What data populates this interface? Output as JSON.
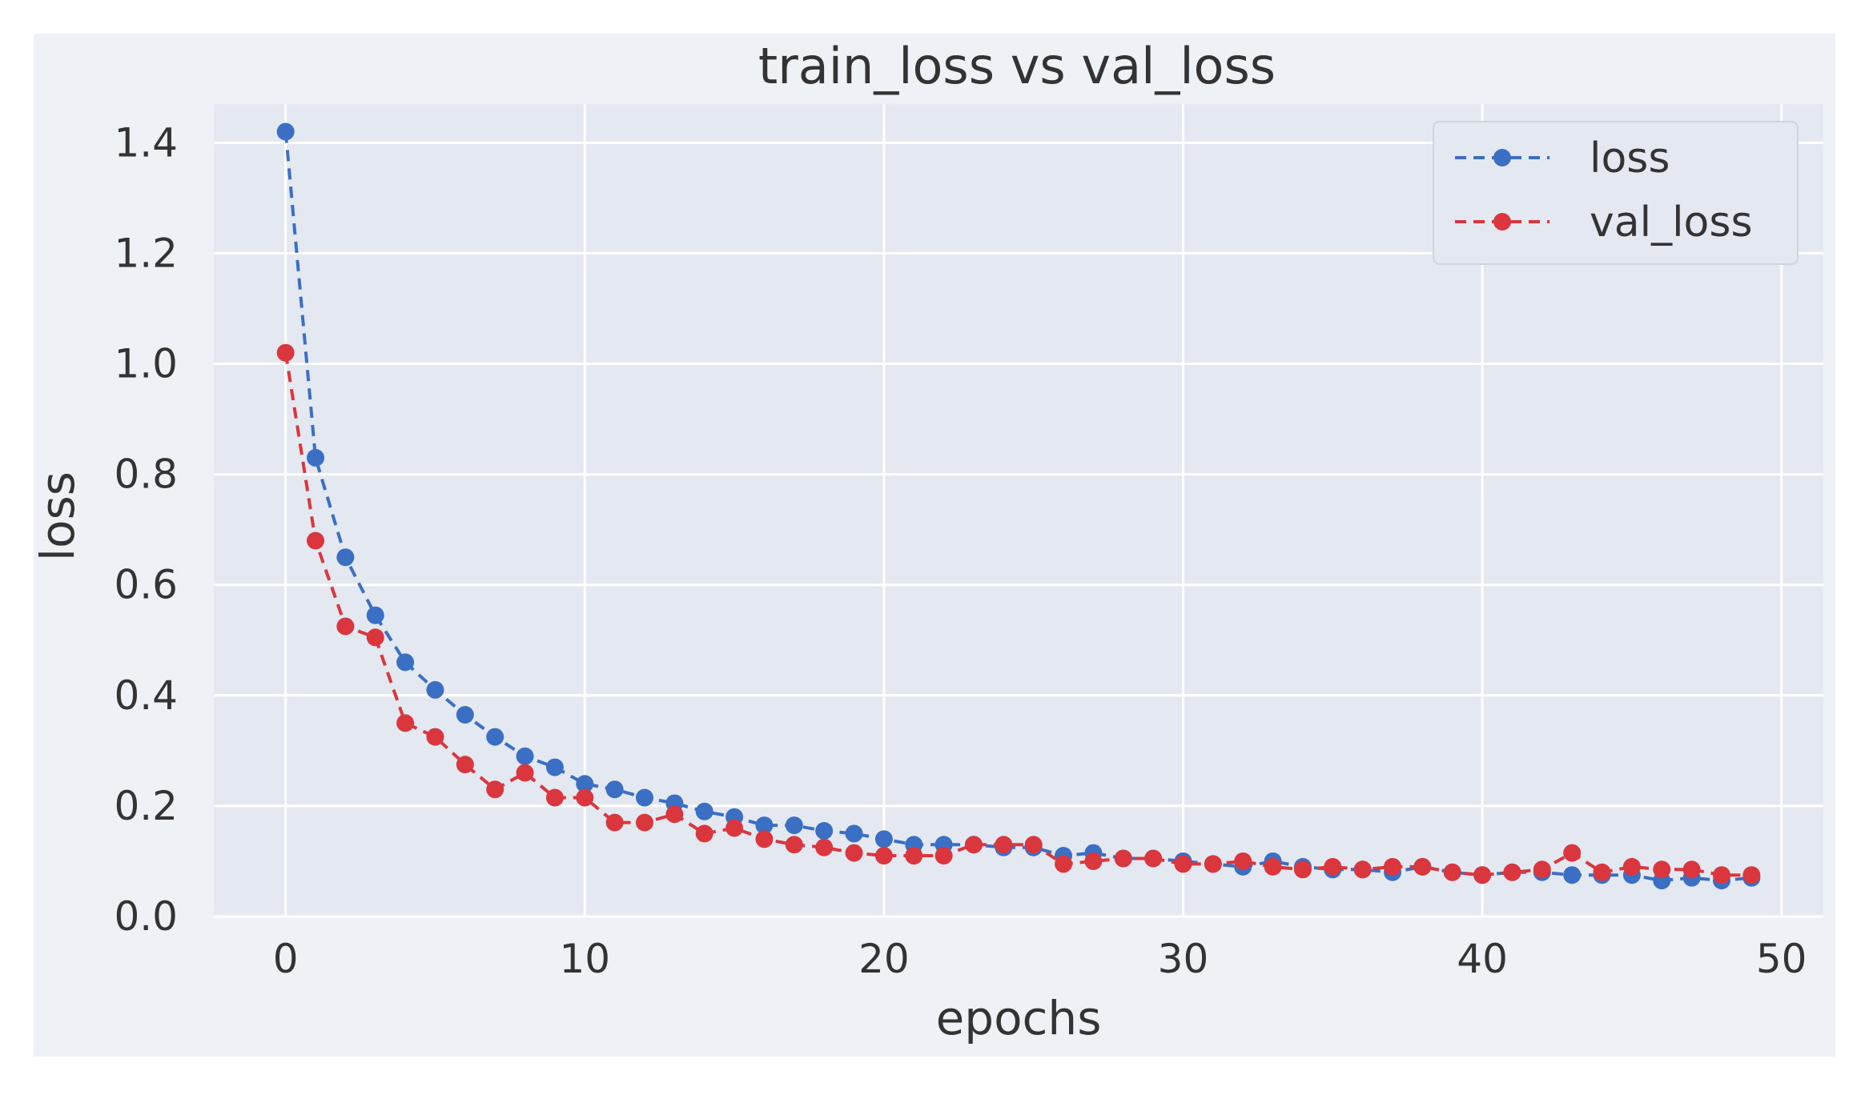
{
  "chart_data": {
    "type": "line",
    "title": "train_loss vs val_loss",
    "xlabel": "epochs",
    "ylabel": "loss",
    "xlim": [
      -2.4,
      51.4
    ],
    "ylim": [
      0.0,
      1.47
    ],
    "xticks": [
      0,
      10,
      20,
      30,
      40,
      50
    ],
    "yticks": [
      0.0,
      0.2,
      0.4,
      0.6,
      0.8,
      1.0,
      1.2,
      1.4
    ],
    "xtick_labels": [
      "0",
      "10",
      "20",
      "30",
      "40",
      "50"
    ],
    "ytick_labels": [
      "0.0",
      "0.2",
      "0.4",
      "0.6",
      "0.8",
      "1.0",
      "1.2",
      "1.4"
    ],
    "grid": true,
    "legend_position": "top-right",
    "x": [
      0,
      1,
      2,
      3,
      4,
      5,
      6,
      7,
      8,
      9,
      10,
      11,
      12,
      13,
      14,
      15,
      16,
      17,
      18,
      19,
      20,
      21,
      22,
      23,
      24,
      25,
      26,
      27,
      28,
      29,
      30,
      31,
      32,
      33,
      34,
      35,
      36,
      37,
      38,
      39,
      40,
      41,
      42,
      43,
      44,
      45,
      46,
      47,
      48,
      49
    ],
    "series": [
      {
        "name": "loss",
        "color": "#3a6fc4",
        "values": [
          1.42,
          0.83,
          0.65,
          0.545,
          0.46,
          0.41,
          0.365,
          0.325,
          0.29,
          0.27,
          0.24,
          0.23,
          0.215,
          0.205,
          0.19,
          0.18,
          0.165,
          0.165,
          0.155,
          0.15,
          0.14,
          0.13,
          0.13,
          0.13,
          0.125,
          0.125,
          0.11,
          0.115,
          0.105,
          0.105,
          0.1,
          0.095,
          0.09,
          0.1,
          0.09,
          0.085,
          0.085,
          0.08,
          0.09,
          0.08,
          0.075,
          0.08,
          0.08,
          0.075,
          0.075,
          0.075,
          0.065,
          0.07,
          0.065,
          0.07
        ]
      },
      {
        "name": "val_loss",
        "color": "#d9363e",
        "values": [
          1.02,
          0.68,
          0.525,
          0.505,
          0.35,
          0.325,
          0.275,
          0.23,
          0.26,
          0.215,
          0.215,
          0.17,
          0.17,
          0.185,
          0.15,
          0.16,
          0.14,
          0.13,
          0.125,
          0.115,
          0.11,
          0.11,
          0.11,
          0.13,
          0.13,
          0.13,
          0.095,
          0.1,
          0.105,
          0.105,
          0.095,
          0.095,
          0.1,
          0.09,
          0.085,
          0.09,
          0.085,
          0.09,
          0.09,
          0.08,
          0.075,
          0.08,
          0.085,
          0.115,
          0.08,
          0.09,
          0.085,
          0.085,
          0.075,
          0.075
        ]
      }
    ]
  },
  "colors": {
    "figure_bg": "#eef2f6",
    "plot_bg": "#e4e8f1",
    "grid": "#ffffff",
    "text": "#333333",
    "legend_border": "#cfd5df"
  }
}
